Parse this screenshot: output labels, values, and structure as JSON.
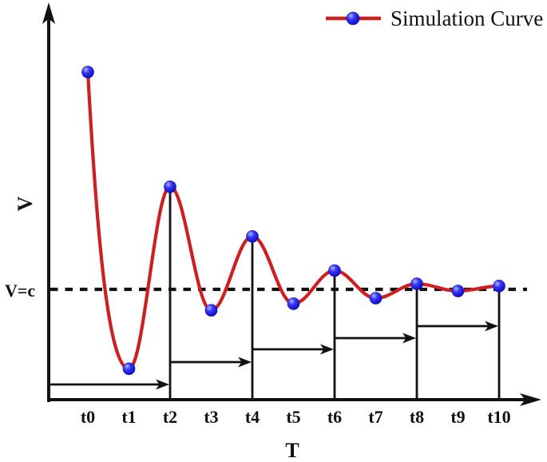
{
  "chart_data": {
    "type": "line",
    "title": "",
    "xlabel": "T",
    "ylabel": "V",
    "legend": {
      "label": "Simulation Curve",
      "position": "top-right"
    },
    "reference_line": {
      "label": "V=c",
      "value": 1.0,
      "style": "dashed",
      "color": "#111111"
    },
    "categories": [
      "t0",
      "t1",
      "t2",
      "t3",
      "t4",
      "t5",
      "t6",
      "t7",
      "t8",
      "t9",
      "t10"
    ],
    "series": [
      {
        "name": "Simulation Curve",
        "values": [
          2.97,
          0.28,
          1.93,
          0.81,
          1.48,
          0.87,
          1.17,
          0.92,
          1.05,
          0.985,
          1.03
        ],
        "values_unit": "relative to reference line V=c = 1.0 (y axis unlabeled)",
        "line_color": "#cc1f1f",
        "marker": "circle",
        "marker_color": "#2222ee"
      }
    ],
    "annotations": {
      "vertical_lines_at": [
        "t2",
        "t4",
        "t6",
        "t8",
        "t10"
      ],
      "horizontal_arrows": [
        {
          "from": "y-axis",
          "to": "t2"
        },
        {
          "from": "t2",
          "to": "t4"
        },
        {
          "from": "t4",
          "to": "t6"
        },
        {
          "from": "t6",
          "to": "t8"
        },
        {
          "from": "t8",
          "to": "t10"
        }
      ]
    },
    "axis": {
      "x_arrow": true,
      "y_arrow": true,
      "grid": false,
      "background": "#ffffff"
    }
  },
  "colors": {
    "curve": "#cc1f1f",
    "marker": "#2222ee",
    "axis": "#111111",
    "background": "#ffffff"
  }
}
